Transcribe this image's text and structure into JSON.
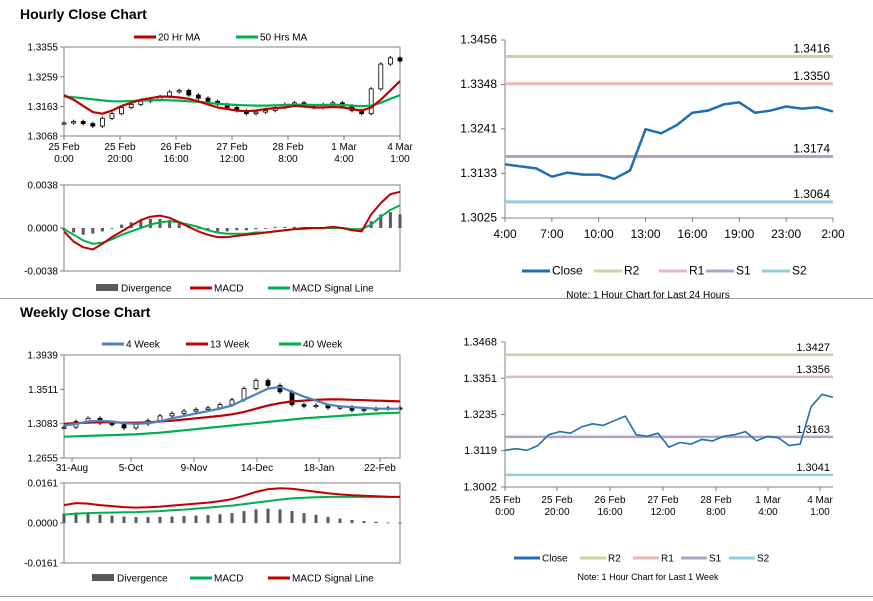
{
  "colors": {
    "ma20": "#c00000",
    "ma50": "#00b050",
    "week4": "#4f81bd",
    "week13": "#c00000",
    "week40": "#00b050",
    "close": "#1f6fb4",
    "r2": "#c3d69b",
    "r1": "#e6b9b8",
    "s1": "#b3a2c7",
    "s2": "#93cddd",
    "divergence": "#595959",
    "macd": "#c00000",
    "signal": "#00b050"
  },
  "hourly_title": "Hourly Close Chart",
  "weekly_title": "Weekly Close Chart",
  "chart_data": [
    {
      "id": "hourly_price",
      "type": "candlestick-with-ma",
      "legend": [
        "20 Hr MA",
        "50 Hrs MA"
      ],
      "y_ticks": [
        "1.3355",
        "1.3259",
        "1.3163",
        "1.3068"
      ],
      "ylim": [
        1.3068,
        1.3355
      ],
      "x_ticks": [
        [
          "25 Feb",
          "0:00"
        ],
        [
          "25 Feb",
          "20:00"
        ],
        [
          "26 Feb",
          "16:00"
        ],
        [
          "27 Feb",
          "12:00"
        ],
        [
          "28 Feb",
          "8:00"
        ],
        [
          "1 Mar",
          "4:00"
        ],
        [
          "4 Mar",
          "1:00"
        ]
      ],
      "closes": [
        1.311,
        1.3115,
        1.3108,
        1.31,
        1.3125,
        1.314,
        1.316,
        1.317,
        1.318,
        1.3185,
        1.3195,
        1.321,
        1.3215,
        1.32,
        1.319,
        1.318,
        1.317,
        1.316,
        1.315,
        1.314,
        1.3145,
        1.315,
        1.316,
        1.317,
        1.3175,
        1.3165,
        1.316,
        1.317,
        1.3175,
        1.3165,
        1.315,
        1.314,
        1.322,
        1.33,
        1.332,
        1.331
      ],
      "ma20": [
        1.32,
        1.3185,
        1.3165,
        1.3145,
        1.314,
        1.315,
        1.3165,
        1.3175,
        1.3185,
        1.319,
        1.3195,
        1.3195,
        1.3192,
        1.3188,
        1.318,
        1.317,
        1.316,
        1.3155,
        1.315,
        1.3148,
        1.315,
        1.3155,
        1.3158,
        1.316,
        1.3165,
        1.3163,
        1.316,
        1.316,
        1.3162,
        1.316,
        1.3155,
        1.315,
        1.316,
        1.3185,
        1.3215,
        1.3245
      ],
      "ma50": [
        1.3195,
        1.3193,
        1.319,
        1.3186,
        1.3183,
        1.318,
        1.318,
        1.3181,
        1.3182,
        1.3183,
        1.3184,
        1.3183,
        1.3182,
        1.318,
        1.3178,
        1.3175,
        1.3172,
        1.317,
        1.3168,
        1.3167,
        1.3166,
        1.3166,
        1.3167,
        1.3168,
        1.3169,
        1.3169,
        1.3168,
        1.3168,
        1.3169,
        1.3168,
        1.3166,
        1.3164,
        1.3166,
        1.3175,
        1.3188,
        1.32
      ]
    },
    {
      "id": "hourly_macd",
      "type": "macd",
      "y_ticks": [
        "0.0038",
        "0.0000",
        "-0.0038"
      ],
      "ylim": [
        -0.0038,
        0.0038
      ],
      "legend": [
        "Divergence",
        "MACD",
        "MACD Signal Line"
      ],
      "divergence": [
        -0.0002,
        -0.0004,
        -0.0006,
        -0.0005,
        -0.0003,
        0.0,
        0.0003,
        0.0005,
        0.0007,
        0.0008,
        0.0008,
        0.0007,
        0.0005,
        0.0002,
        0.0,
        -0.0002,
        -0.0003,
        -0.0003,
        -0.0002,
        -0.0002,
        -0.0001,
        0.0,
        0.0001,
        0.0001,
        0.0001,
        0.0,
        0.0,
        0.0,
        0.0001,
        0.0,
        -0.0002,
        -0.0003,
        0.0006,
        0.0012,
        0.0014,
        0.0012
      ],
      "macd": [
        -0.0003,
        -0.0012,
        -0.0017,
        -0.0019,
        -0.0014,
        -0.0008,
        -0.0003,
        0.0002,
        0.0007,
        0.001,
        0.0011,
        0.0009,
        0.0005,
        0.0001,
        -0.0003,
        -0.0006,
        -0.0008,
        -0.0008,
        -0.0007,
        -0.0006,
        -0.0005,
        -0.0004,
        -0.0003,
        -0.0002,
        -0.0001,
        0.0,
        0.0,
        0.0,
        0.0001,
        0.0,
        -0.0002,
        -0.0003,
        0.0012,
        0.0022,
        0.003,
        0.0032
      ],
      "signal": [
        -0.0001,
        -0.0006,
        -0.0011,
        -0.0014,
        -0.0013,
        -0.001,
        -0.0006,
        -0.0003,
        0.0,
        0.0003,
        0.0005,
        0.0006,
        0.0005,
        0.0003,
        0.0001,
        -0.0002,
        -0.0004,
        -0.0005,
        -0.0005,
        -0.0005,
        -0.0004,
        -0.0004,
        -0.0003,
        -0.0002,
        -0.0001,
        -0.0001,
        0.0,
        0.0,
        0.0,
        0.0,
        -0.0001,
        -0.0001,
        0.0003,
        0.001,
        0.0016,
        0.002
      ]
    },
    {
      "id": "hourly_24h",
      "type": "line-with-levels",
      "y_ticks": [
        "1.3456",
        "1.3348",
        "1.3241",
        "1.3133",
        "1.3025"
      ],
      "ylim": [
        1.3025,
        1.3456
      ],
      "x_ticks": [
        "4:00",
        "7:00",
        "10:00",
        "13:00",
        "16:00",
        "19:00",
        "23:00",
        "2:00"
      ],
      "close": [
        1.3155,
        1.315,
        1.3145,
        1.3125,
        1.3135,
        1.313,
        1.313,
        1.312,
        1.314,
        1.324,
        1.323,
        1.325,
        1.328,
        1.3285,
        1.33,
        1.3305,
        1.328,
        1.3285,
        1.3295,
        1.329,
        1.3293,
        1.3283
      ],
      "levels": [
        {
          "name": "R2",
          "value": 1.3416,
          "label": "1.3416"
        },
        {
          "name": "R1",
          "value": 1.335,
          "label": "1.3350"
        },
        {
          "name": "S1",
          "value": 1.3174,
          "label": "1.3174"
        },
        {
          "name": "S2",
          "value": 1.3064,
          "label": "1.3064"
        }
      ],
      "legend": [
        "Close",
        "R2",
        "R1",
        "S1",
        "S2"
      ],
      "note": "Note: 1 Hour Chart for Last 24 Hours"
    },
    {
      "id": "weekly_price",
      "type": "candlestick-with-ma",
      "legend": [
        "4 Week",
        "13 Week",
        "40 Week"
      ],
      "y_ticks": [
        "1.3939",
        "1.3511",
        "1.3083",
        "1.2655"
      ],
      "ylim": [
        1.2655,
        1.3939
      ],
      "x_ticks": [
        "31-Aug",
        "5-Oct",
        "9-Nov",
        "14-Dec",
        "18-Jan",
        "22-Feb"
      ],
      "closes": [
        1.304,
        1.311,
        1.315,
        1.309,
        1.307,
        1.303,
        1.308,
        1.312,
        1.318,
        1.321,
        1.324,
        1.326,
        1.328,
        1.332,
        1.338,
        1.352,
        1.362,
        1.356,
        1.348,
        1.332,
        1.33,
        1.331,
        1.328,
        1.329,
        1.325,
        1.326,
        1.327,
        1.328,
        1.327
      ],
      "week4": [
        1.306,
        1.308,
        1.311,
        1.312,
        1.311,
        1.309,
        1.308,
        1.309,
        1.311,
        1.315,
        1.318,
        1.321,
        1.324,
        1.327,
        1.331,
        1.338,
        1.345,
        1.352,
        1.354,
        1.348,
        1.342,
        1.337,
        1.332,
        1.33,
        1.329,
        1.328,
        1.327,
        1.327,
        1.327
      ],
      "week13": [
        1.308,
        1.309,
        1.3095,
        1.31,
        1.31,
        1.3095,
        1.3095,
        1.31,
        1.311,
        1.312,
        1.3135,
        1.315,
        1.3165,
        1.318,
        1.32,
        1.323,
        1.327,
        1.331,
        1.334,
        1.336,
        1.337,
        1.338,
        1.3385,
        1.3385,
        1.338,
        1.3375,
        1.337,
        1.3365,
        1.336
      ],
      "week40": [
        1.292,
        1.2925,
        1.293,
        1.2935,
        1.294,
        1.2945,
        1.295,
        1.296,
        1.297,
        1.2985,
        1.3,
        1.3015,
        1.303,
        1.3045,
        1.306,
        1.3075,
        1.309,
        1.3105,
        1.312,
        1.3135,
        1.315,
        1.316,
        1.317,
        1.318,
        1.319,
        1.32,
        1.321,
        1.3215,
        1.322
      ]
    },
    {
      "id": "weekly_macd",
      "type": "macd",
      "y_ticks": [
        "0.0161",
        "0.0000",
        "-0.0161"
      ],
      "ylim": [
        -0.0161,
        0.0161
      ],
      "legend": [
        "Divergence",
        "MACD",
        "MACD Signal Line"
      ],
      "divergence": [
        0.0038,
        0.0042,
        0.004,
        0.0034,
        0.003,
        0.0026,
        0.0024,
        0.0024,
        0.0025,
        0.0026,
        0.0028,
        0.003,
        0.0032,
        0.0035,
        0.004,
        0.0048,
        0.0055,
        0.0058,
        0.0055,
        0.0048,
        0.004,
        0.0033,
        0.0025,
        0.0018,
        0.0012,
        0.0008,
        0.0005,
        0.0002,
        0.0001
      ],
      "macd": [
        0.0072,
        0.008,
        0.0078,
        0.0072,
        0.0068,
        0.0064,
        0.0062,
        0.0063,
        0.0066,
        0.007,
        0.0074,
        0.0078,
        0.0082,
        0.0088,
        0.0096,
        0.011,
        0.0125,
        0.0136,
        0.014,
        0.0138,
        0.0132,
        0.0126,
        0.012,
        0.0115,
        0.0112,
        0.011,
        0.0108,
        0.0106,
        0.0105
      ],
      "signal": [
        0.0034,
        0.0038,
        0.004,
        0.0041,
        0.0042,
        0.0043,
        0.0044,
        0.0046,
        0.0048,
        0.0051,
        0.0054,
        0.0058,
        0.0062,
        0.0066,
        0.007,
        0.0076,
        0.0082,
        0.0088,
        0.0094,
        0.0099,
        0.0102,
        0.0104,
        0.0105,
        0.0105,
        0.0105,
        0.0105,
        0.0105,
        0.0105,
        0.0105
      ]
    },
    {
      "id": "weekly_hourly",
      "type": "line-with-levels",
      "y_ticks": [
        "1.3468",
        "1.3351",
        "1.3235",
        "1.3119",
        "1.3002"
      ],
      "ylim": [
        1.3002,
        1.3468
      ],
      "x_ticks": [
        [
          "25 Feb",
          "0:00"
        ],
        [
          "25 Feb",
          "20:00"
        ],
        [
          "26 Feb",
          "16:00"
        ],
        [
          "27 Feb",
          "12:00"
        ],
        [
          "28 Feb",
          "8:00"
        ],
        [
          "1 Mar",
          "4:00"
        ],
        [
          "4 Mar",
          "1:00"
        ]
      ],
      "close": [
        1.312,
        1.3125,
        1.312,
        1.3135,
        1.317,
        1.318,
        1.3175,
        1.3195,
        1.3205,
        1.32,
        1.3215,
        1.323,
        1.317,
        1.3165,
        1.3175,
        1.313,
        1.3145,
        1.314,
        1.3155,
        1.315,
        1.3165,
        1.317,
        1.318,
        1.315,
        1.3165,
        1.316,
        1.3135,
        1.314,
        1.326,
        1.33,
        1.329
      ],
      "levels": [
        {
          "name": "R2",
          "value": 1.3427,
          "label": "1.3427"
        },
        {
          "name": "R1",
          "value": 1.3356,
          "label": "1.3356"
        },
        {
          "name": "S1",
          "value": 1.3163,
          "label": "1.3163"
        },
        {
          "name": "S2",
          "value": 1.3041,
          "label": "1.3041"
        }
      ],
      "legend": [
        "Close",
        "R2",
        "R1",
        "S1",
        "S2"
      ],
      "note": "Note: 1 Hour Chart for Last 1 Week"
    }
  ]
}
